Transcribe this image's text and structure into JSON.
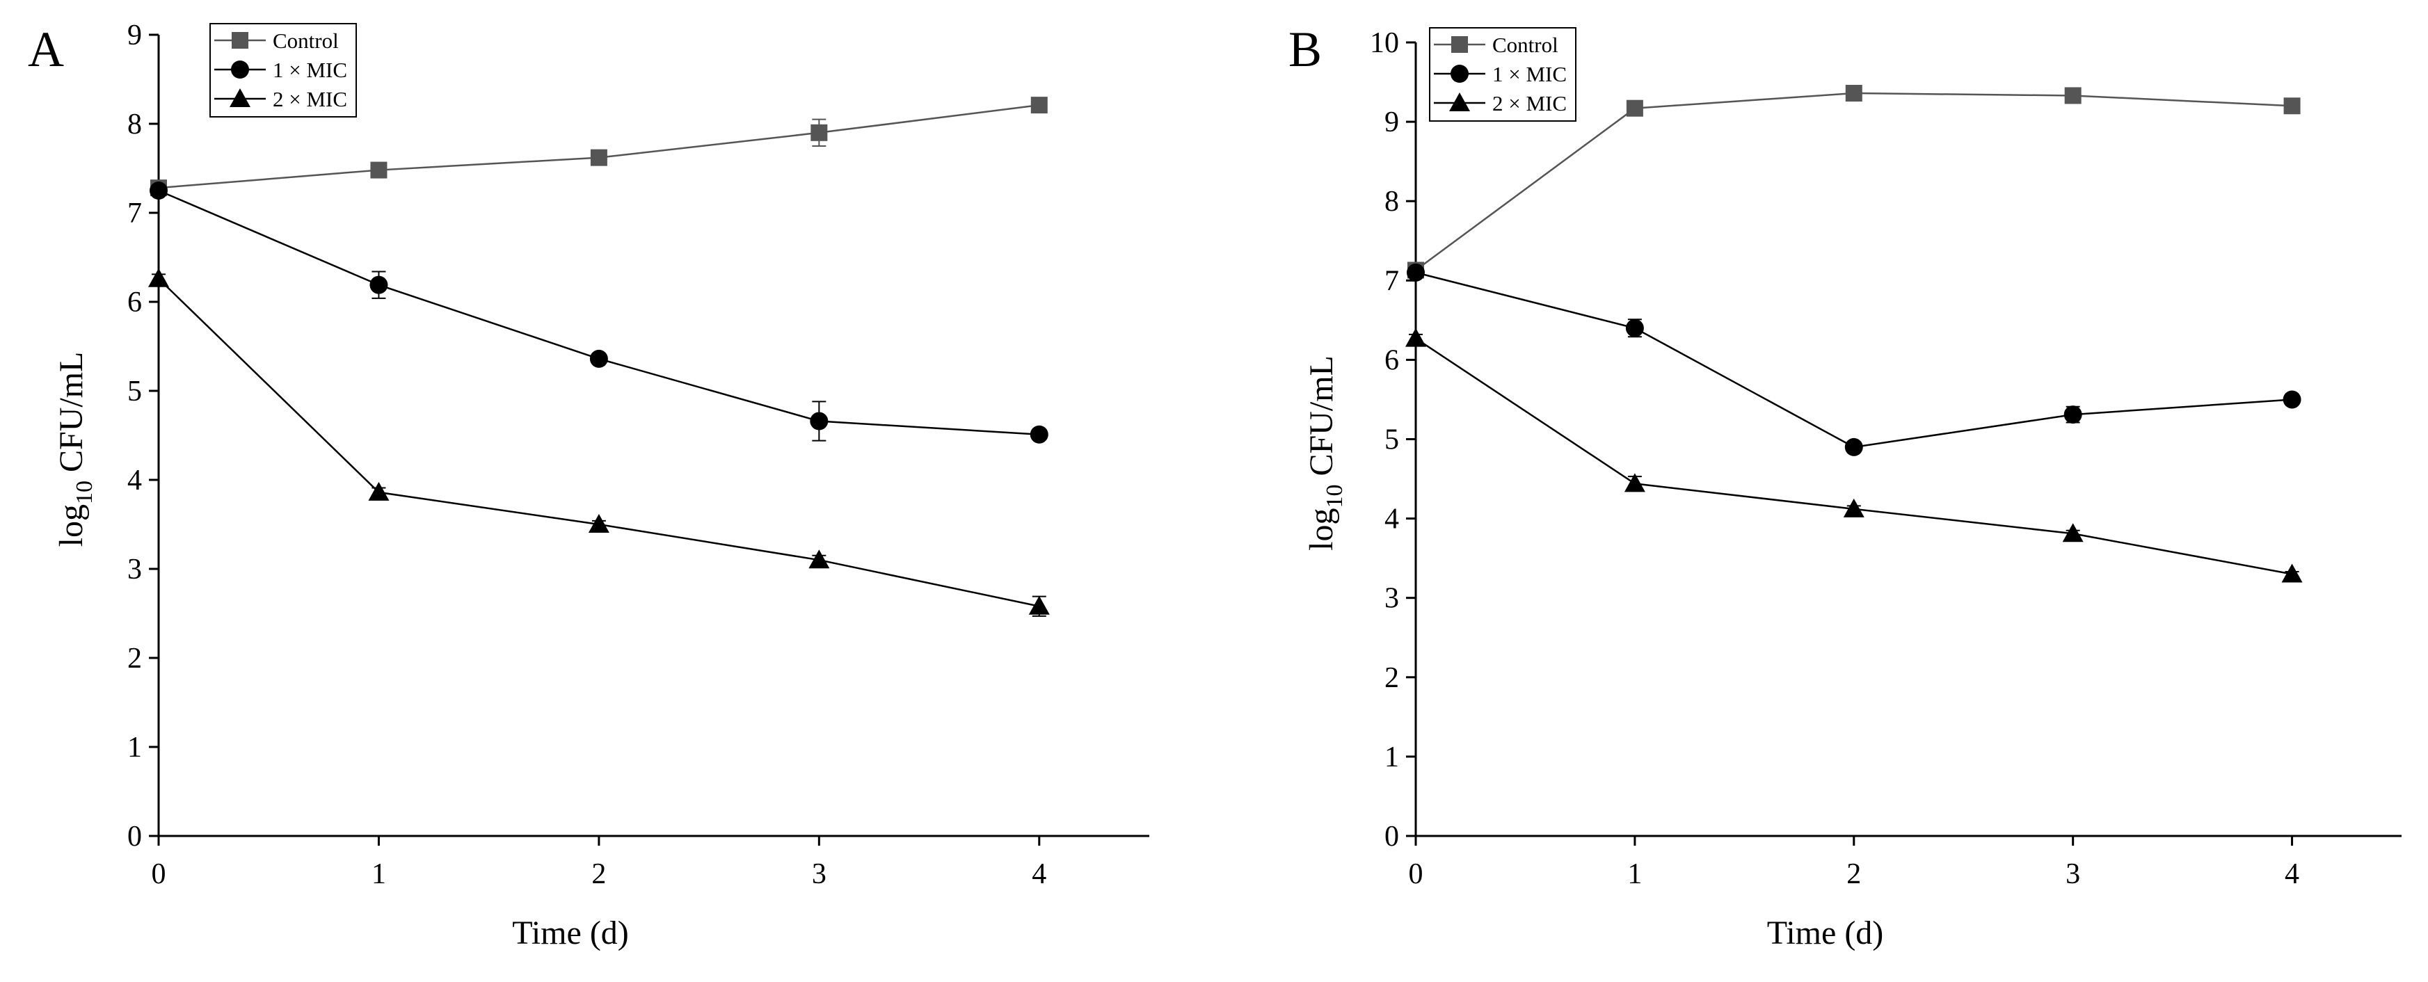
{
  "chart_data": [
    {
      "type": "line",
      "panel_label": "A",
      "xlabel": "Time (d)",
      "ylabel_main": "log",
      "ylabel_sub": "10",
      "ylabel_rest": " CFU/mL",
      "x": [
        0,
        1,
        2,
        3,
        4
      ],
      "xticks": [
        "0",
        "1",
        "2",
        "3",
        "4"
      ],
      "xlim": [
        0,
        4.5
      ],
      "ylim": [
        0,
        9
      ],
      "yticks": [
        "0",
        "1",
        "2",
        "3",
        "4",
        "5",
        "6",
        "7",
        "8",
        "9"
      ],
      "legend_position": "top-left",
      "series": [
        {
          "name": "Control",
          "marker": "square",
          "color": "#555555",
          "values": [
            7.28,
            7.48,
            7.62,
            7.9,
            8.21
          ],
          "errors": [
            0.05,
            0.03,
            0.03,
            0.15,
            0.03
          ]
        },
        {
          "name": "1 × MIC",
          "marker": "circle",
          "color": "#000000",
          "values": [
            7.25,
            6.19,
            5.36,
            4.66,
            4.51
          ],
          "errors": [
            0.05,
            0.15,
            0.05,
            0.22,
            0.03
          ]
        },
        {
          "name": "2 × MIC",
          "marker": "triangle",
          "color": "#000000",
          "values": [
            6.26,
            3.86,
            3.5,
            3.1,
            2.58
          ],
          "errors": [
            0.05,
            0.05,
            0.04,
            0.05,
            0.11
          ]
        }
      ]
    },
    {
      "type": "line",
      "panel_label": "B",
      "xlabel": "Time (d)",
      "ylabel_main": "log",
      "ylabel_sub": "10",
      "ylabel_rest": " CFU/mL",
      "x": [
        0,
        1,
        2,
        3,
        4
      ],
      "xticks": [
        "0",
        "1",
        "2",
        "3",
        "4"
      ],
      "xlim": [
        0,
        4.5
      ],
      "ylim": [
        0,
        10
      ],
      "yticks": [
        "0",
        "1",
        "2",
        "3",
        "4",
        "5",
        "6",
        "7",
        "8",
        "9",
        "10"
      ],
      "legend_position": "top-left",
      "series": [
        {
          "name": "Control",
          "marker": "square",
          "color": "#555555",
          "values": [
            7.13,
            9.17,
            9.36,
            9.33,
            9.2
          ],
          "errors": [
            0.05,
            0.04,
            0.03,
            0.03,
            0.03
          ]
        },
        {
          "name": "1 × MIC",
          "marker": "circle",
          "color": "#000000",
          "values": [
            7.1,
            6.4,
            4.9,
            5.31,
            5.5
          ],
          "errors": [
            0.05,
            0.11,
            0.04,
            0.1,
            0.03
          ]
        },
        {
          "name": "2 × MIC",
          "marker": "triangle",
          "color": "#000000",
          "values": [
            6.27,
            4.44,
            4.12,
            3.81,
            3.3
          ],
          "errors": [
            0.05,
            0.09,
            0.04,
            0.04,
            0.03
          ]
        }
      ]
    }
  ]
}
